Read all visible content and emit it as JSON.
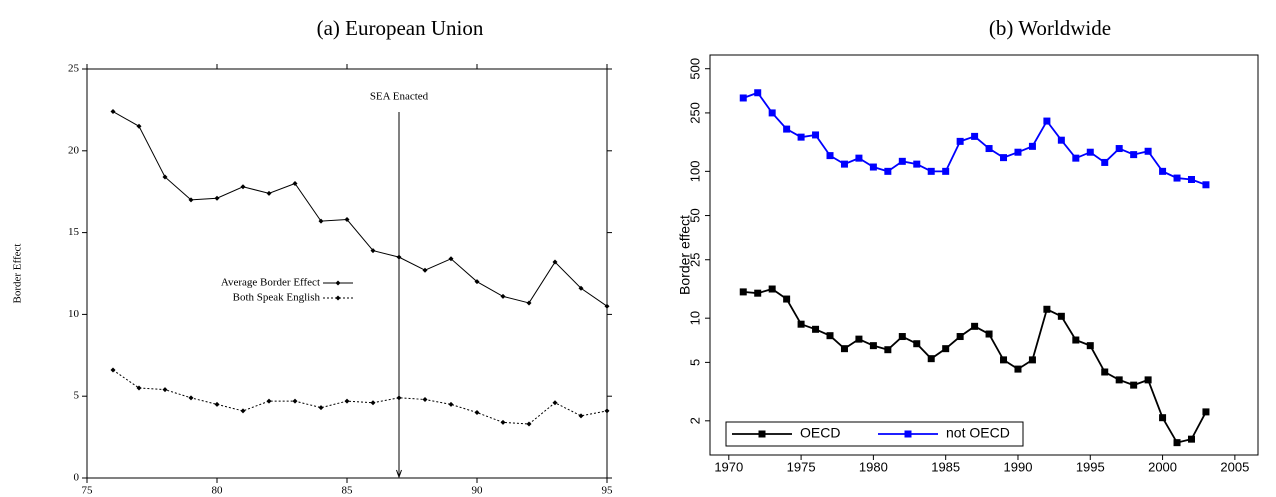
{
  "chart_data": [
    {
      "type": "line",
      "title": "(a) European Union",
      "ylabel": "Border Effect",
      "x": [
        76,
        77,
        78,
        79,
        80,
        81,
        82,
        83,
        84,
        85,
        86,
        87,
        88,
        89,
        90,
        91,
        92,
        93,
        94,
        95
      ],
      "series": [
        {
          "name": "Average Border Effect",
          "color": "#000000",
          "dash": false,
          "marker": "diamond",
          "values": [
            22.4,
            21.5,
            18.4,
            17.0,
            17.1,
            17.8,
            17.4,
            18.0,
            15.7,
            15.8,
            13.9,
            13.5,
            12.7,
            13.4,
            12.0,
            11.1,
            10.7,
            13.2,
            11.6,
            10.5
          ]
        },
        {
          "name": "Both Speak English",
          "color": "#000000",
          "dash": true,
          "marker": "diamond",
          "values": [
            6.6,
            5.5,
            5.4,
            4.9,
            4.5,
            4.1,
            4.7,
            4.7,
            4.3,
            4.7,
            4.6,
            4.9,
            4.8,
            4.5,
            4.0,
            3.4,
            3.3,
            4.6,
            3.8,
            4.1
          ]
        }
      ],
      "annotations": [
        {
          "text": "SEA Enacted",
          "x": 87
        }
      ],
      "xlim": [
        75,
        95
      ],
      "xticks": [
        75,
        80,
        85,
        90,
        95
      ],
      "ylim": [
        0,
        25
      ],
      "yticks": [
        0,
        5,
        10,
        15,
        20,
        25
      ],
      "log_scale": false,
      "legend": "center"
    },
    {
      "type": "line",
      "title": "(b) Worldwide",
      "ylabel": "Border effect",
      "x": [
        1971,
        1972,
        1973,
        1974,
        1975,
        1976,
        1977,
        1978,
        1979,
        1980,
        1981,
        1982,
        1983,
        1984,
        1985,
        1986,
        1987,
        1988,
        1989,
        1990,
        1991,
        1992,
        1993,
        1994,
        1995,
        1996,
        1997,
        1998,
        1999,
        2000,
        2001,
        2002,
        2003
      ],
      "series": [
        {
          "name": "OECD",
          "color": "#000000",
          "dash": false,
          "marker": "square",
          "values": [
            15.1,
            14.8,
            15.8,
            13.5,
            9.1,
            8.4,
            7.6,
            6.2,
            7.2,
            6.5,
            6.1,
            7.5,
            6.7,
            5.3,
            6.2,
            7.5,
            8.8,
            7.8,
            5.2,
            4.5,
            5.2,
            11.5,
            10.3,
            7.1,
            6.5,
            4.3,
            3.8,
            3.5,
            3.8,
            2.1,
            1.42,
            1.5,
            2.3
          ]
        },
        {
          "name": "not OECD",
          "color": "#0000ff",
          "dash": false,
          "marker": "square",
          "values": [
            316,
            343,
            250,
            194,
            171,
            177,
            128,
            112,
            123,
            107,
            100,
            117,
            112,
            100,
            100,
            160,
            173,
            143,
            124,
            135,
            148,
            220,
            163,
            123,
            135,
            115,
            143,
            130,
            137,
            100,
            90,
            88,
            81
          ]
        }
      ],
      "xlim": [
        1968.7,
        2006.6
      ],
      "xticks": [
        1970,
        1975,
        1980,
        1985,
        1990,
        1995,
        2000,
        2005
      ],
      "ylim": [
        1.17,
        620
      ],
      "yticks": [
        2,
        5,
        10,
        25,
        50,
        100,
        250,
        500
      ],
      "log_scale": true,
      "legend": "lower left"
    }
  ]
}
